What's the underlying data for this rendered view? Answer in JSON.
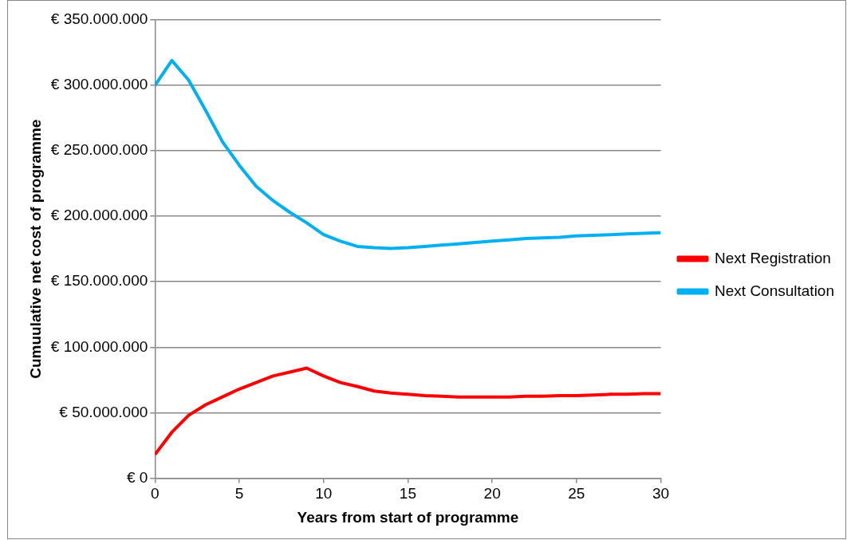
{
  "chart_data": {
    "type": "line",
    "xlabel": "Years from start of programme",
    "ylabel": "Cumuulative net cost of programme",
    "x": [
      0,
      1,
      2,
      3,
      4,
      5,
      6,
      7,
      8,
      9,
      10,
      11,
      12,
      13,
      14,
      15,
      16,
      17,
      18,
      19,
      20,
      21,
      22,
      23,
      24,
      25,
      26,
      27,
      28,
      29,
      30
    ],
    "xlim": [
      0,
      30
    ],
    "xticks": [
      0,
      5,
      10,
      15,
      20,
      25,
      30
    ],
    "ylim": [
      0,
      350000000
    ],
    "yticks": [
      {
        "value": 0,
        "label": "€ 0"
      },
      {
        "value": 50000000,
        "label": "€ 50.000.000"
      },
      {
        "value": 100000000,
        "label": "€ 100.000.000"
      },
      {
        "value": 150000000,
        "label": "€ 150.000.000"
      },
      {
        "value": 200000000,
        "label": "€ 200.000.000"
      },
      {
        "value": 250000000,
        "label": "€ 250.000.000"
      },
      {
        "value": 300000000,
        "label": "€ 300.000.000"
      },
      {
        "value": 350000000,
        "label": "€ 350.000.000"
      }
    ],
    "grid": "y",
    "legend": "right",
    "marker": "none",
    "line_style": "solid",
    "series": [
      {
        "name": "Next Registration",
        "color": "#ff0000",
        "values": [
          18000000,
          35000000,
          48000000,
          56000000,
          62000000,
          68000000,
          73000000,
          78000000,
          81000000,
          84000000,
          78000000,
          73000000,
          70000000,
          66500000,
          65000000,
          64000000,
          63000000,
          62500000,
          62000000,
          62000000,
          62000000,
          62000000,
          62500000,
          62500000,
          63000000,
          63000000,
          63500000,
          64000000,
          64000000,
          64500000,
          64500000
        ]
      },
      {
        "name": "Next Consultation",
        "color": "#00b0f0",
        "values": [
          300000000,
          319000000,
          304000000,
          281000000,
          257000000,
          239000000,
          223000000,
          212000000,
          203000000,
          195000000,
          186000000,
          181000000,
          177000000,
          176000000,
          175500000,
          176000000,
          177000000,
          178000000,
          179000000,
          180000000,
          181000000,
          182000000,
          183000000,
          183500000,
          184000000,
          185000000,
          185500000,
          186000000,
          186500000,
          187000000,
          187500000
        ]
      }
    ]
  }
}
